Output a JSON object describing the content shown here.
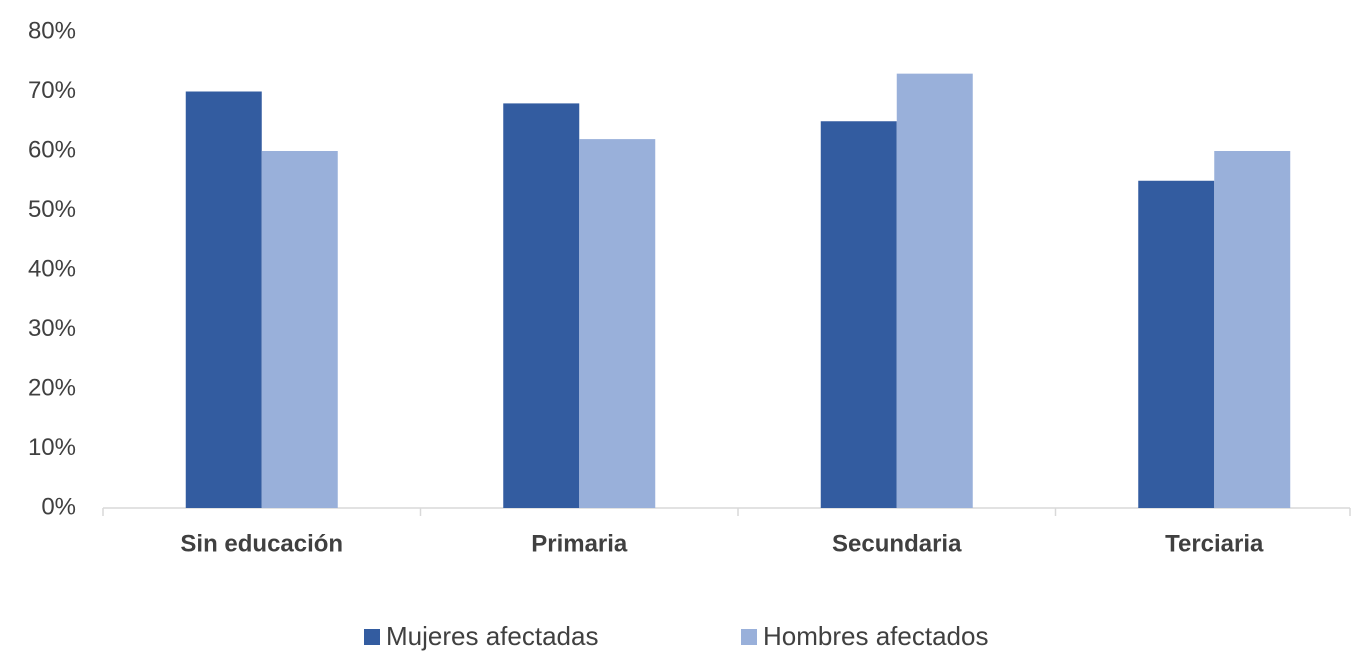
{
  "chart_data": {
    "type": "bar",
    "categories": [
      "Sin educación",
      "Primaria",
      "Secundaria",
      "Terciaria"
    ],
    "series": [
      {
        "name": "Mujeres afectadas",
        "color": "#335ca0",
        "values": [
          70,
          68,
          65,
          55
        ]
      },
      {
        "name": "Hombres afectados",
        "color": "#99b0da",
        "values": [
          60,
          62,
          73,
          60
        ]
      }
    ],
    "ylim": [
      0,
      80
    ],
    "yticks": [
      {
        "value": 0,
        "label": "0%"
      },
      {
        "value": 10,
        "label": "10%"
      },
      {
        "value": 20,
        "label": "20%"
      },
      {
        "value": 30,
        "label": "30%"
      },
      {
        "value": 40,
        "label": "40%"
      },
      {
        "value": 50,
        "label": "50%"
      },
      {
        "value": 60,
        "label": "60%"
      },
      {
        "value": 70,
        "label": "70%"
      },
      {
        "value": 80,
        "label": "80%"
      }
    ],
    "grid": false,
    "legend": "bottom"
  }
}
